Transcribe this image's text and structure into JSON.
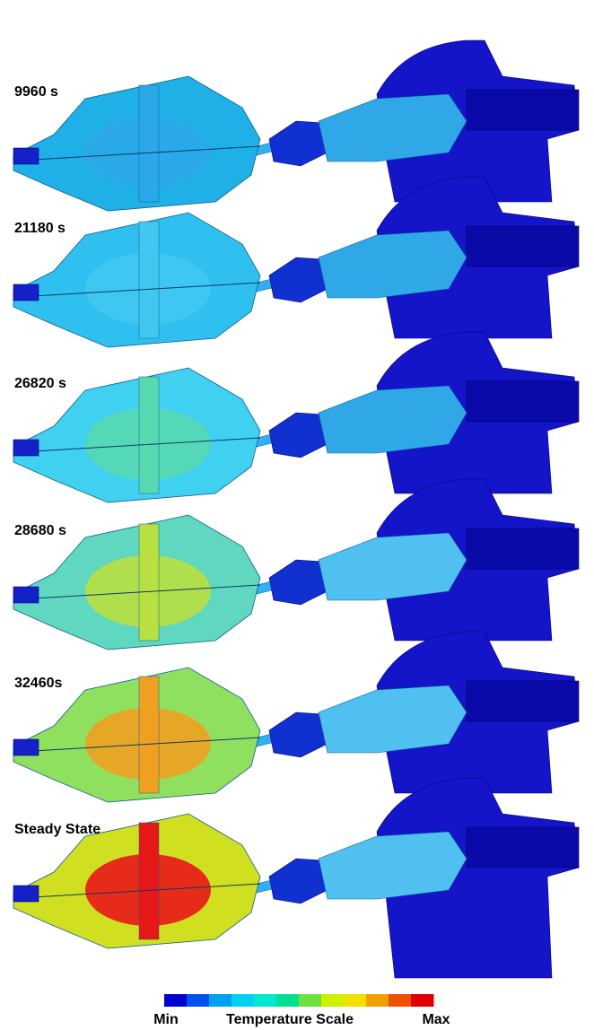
{
  "panels": [
    {
      "label": "9960 s"
    },
    {
      "label": "21180 s"
    },
    {
      "label": "26820 s"
    },
    {
      "label": "28680 s"
    },
    {
      "label": "32460s"
    },
    {
      "label": "Steady State"
    }
  ],
  "legend": {
    "min": "Min",
    "title": "Temperature Scale",
    "max": "Max"
  }
}
